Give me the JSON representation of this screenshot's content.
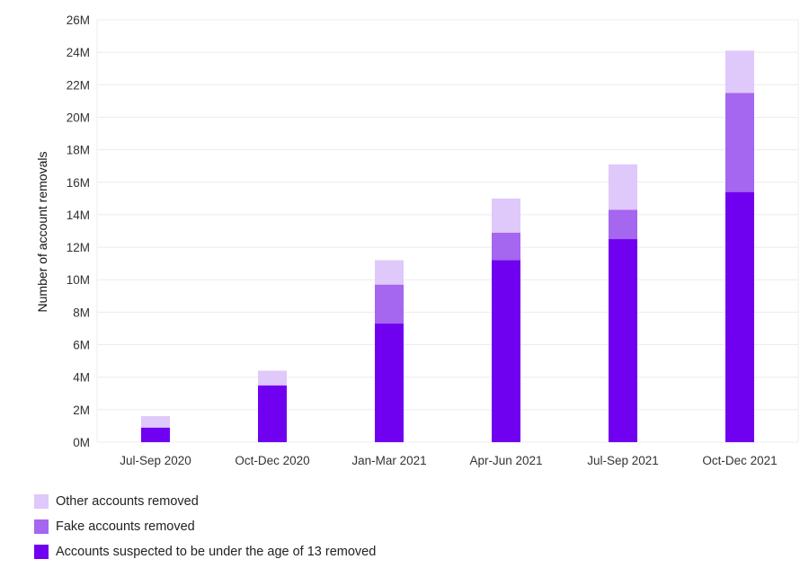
{
  "chart_data": {
    "type": "bar",
    "stacked": true,
    "categories": [
      "Jul-Sep 2020",
      "Oct-Dec 2020",
      "Jan-Mar 2021",
      "Apr-Jun 2021",
      "Jul-Sep 2021",
      "Oct-Dec 2021"
    ],
    "series": [
      {
        "name": "Accounts suspected to be under the age of 13 removed",
        "color": "#7000f0",
        "values": [
          0.9,
          3.5,
          7.3,
          11.2,
          12.5,
          15.4
        ]
      },
      {
        "name": "Fake accounts removed",
        "color": "#a566f0",
        "values": [
          0.0,
          0.0,
          2.4,
          1.7,
          1.8,
          6.1
        ]
      },
      {
        "name": "Other accounts removed",
        "color": "#dfc8fa",
        "values": [
          0.7,
          0.9,
          1.5,
          2.1,
          2.8,
          2.6
        ]
      }
    ],
    "ylabel": "Number of account removals",
    "xlabel": "",
    "ylim": [
      0,
      26
    ],
    "y_ticks": [
      "0M",
      "2M",
      "4M",
      "6M",
      "8M",
      "10M",
      "12M",
      "14M",
      "16M",
      "18M",
      "20M",
      "22M",
      "24M",
      "26M"
    ],
    "grid": true,
    "legend_position": "bottom-left"
  }
}
